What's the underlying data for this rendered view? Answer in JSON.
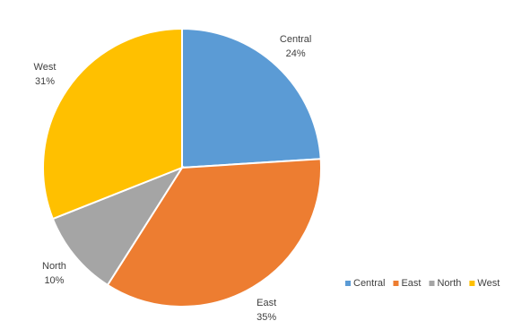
{
  "chart_data": {
    "type": "pie",
    "categories": [
      "Central",
      "East",
      "North",
      "West"
    ],
    "values": [
      24,
      35,
      10,
      31
    ],
    "value_labels": [
      "24%",
      "35%",
      "10%",
      "31%"
    ],
    "colors": [
      "#5b9bd5",
      "#ed7d31",
      "#a5a5a5",
      "#ffc000"
    ],
    "legend": "bottom-right"
  }
}
